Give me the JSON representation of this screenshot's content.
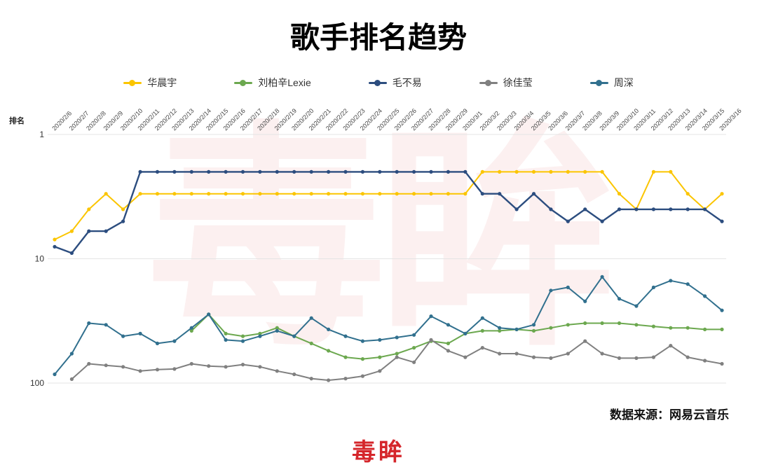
{
  "page": {
    "title": "歌手排名趋势",
    "source_note": "数据来源：网易云音乐",
    "logo_text": "毒眸",
    "watermark_text": "毒眸"
  },
  "chart_data": {
    "type": "line",
    "title": "歌手排名趋势",
    "xlabel": "",
    "ylabel": "排名",
    "legend_position": "top",
    "grid": true,
    "y_axis": {
      "scale": "log",
      "inverted": true,
      "ticks": [
        1,
        10,
        100
      ]
    },
    "x": [
      "2020/2/6",
      "2020/2/7",
      "2020/2/8",
      "2020/2/9",
      "2020/2/10",
      "2020/2/11",
      "2020/2/12",
      "2020/2/13",
      "2020/2/14",
      "2020/2/15",
      "2020/2/16",
      "2020/2/17",
      "2020/2/18",
      "2020/2/19",
      "2020/2/20",
      "2020/2/21",
      "2020/2/22",
      "2020/2/23",
      "2020/2/24",
      "2020/2/25",
      "2020/2/26",
      "2020/2/27",
      "2020/2/28",
      "2020/2/29",
      "2020/3/1",
      "2020/3/2",
      "2020/3/3",
      "2020/3/4",
      "2020/3/5",
      "2020/3/6",
      "2020/3/7",
      "2020/3/8",
      "2020/3/9",
      "2020/3/10",
      "2020/3/11",
      "2020/3/12",
      "2020/3/13",
      "2020/3/14",
      "2020/3/15",
      "2020/3/16"
    ],
    "series": [
      {
        "name": "华晨宇",
        "color": "#FBC500",
        "values": [
          7,
          6,
          4,
          3,
          4,
          3,
          3,
          3,
          3,
          3,
          3,
          3,
          3,
          3,
          3,
          3,
          3,
          3,
          3,
          3,
          3,
          3,
          3,
          3,
          3,
          2,
          2,
          2,
          2,
          2,
          2,
          2,
          2,
          3,
          4,
          2,
          2,
          3,
          4,
          3
        ]
      },
      {
        "name": "刘柏辛Lexie",
        "color": "#6CA84F",
        "values": [
          null,
          null,
          null,
          null,
          null,
          null,
          null,
          null,
          38,
          28,
          40,
          42,
          40,
          36,
          42,
          48,
          55,
          62,
          64,
          62,
          58,
          52,
          46,
          48,
          40,
          38,
          38,
          37,
          38,
          36,
          34,
          33,
          33,
          33,
          34,
          35,
          36,
          36,
          37,
          37
        ]
      },
      {
        "name": "毛不易",
        "color": "#2C4D7F",
        "values": [
          8,
          9,
          6,
          6,
          5,
          2,
          2,
          2,
          2,
          2,
          2,
          2,
          2,
          2,
          2,
          2,
          2,
          2,
          2,
          2,
          2,
          2,
          2,
          2,
          2,
          3,
          3,
          4,
          3,
          4,
          5,
          4,
          5,
          4,
          4,
          4,
          4,
          4,
          4,
          5
        ]
      },
      {
        "name": "徐佳莹",
        "color": "#808080",
        "values": [
          null,
          93,
          70,
          72,
          74,
          80,
          78,
          77,
          70,
          73,
          74,
          71,
          74,
          80,
          85,
          92,
          95,
          92,
          88,
          80,
          62,
          68,
          45,
          55,
          62,
          52,
          58,
          58,
          62,
          63,
          58,
          46,
          58,
          63,
          63,
          62,
          50,
          62,
          66,
          70
        ]
      },
      {
        "name": "周深",
        "color": "#31708E",
        "values": [
          85,
          58,
          33,
          34,
          42,
          40,
          48,
          46,
          36,
          28,
          45,
          46,
          42,
          38,
          42,
          30,
          37,
          42,
          46,
          45,
          43,
          41,
          29,
          34,
          40,
          30,
          36,
          37,
          34,
          18,
          17,
          22,
          14,
          21,
          24,
          17,
          15,
          16,
          20,
          26
        ]
      }
    ]
  }
}
